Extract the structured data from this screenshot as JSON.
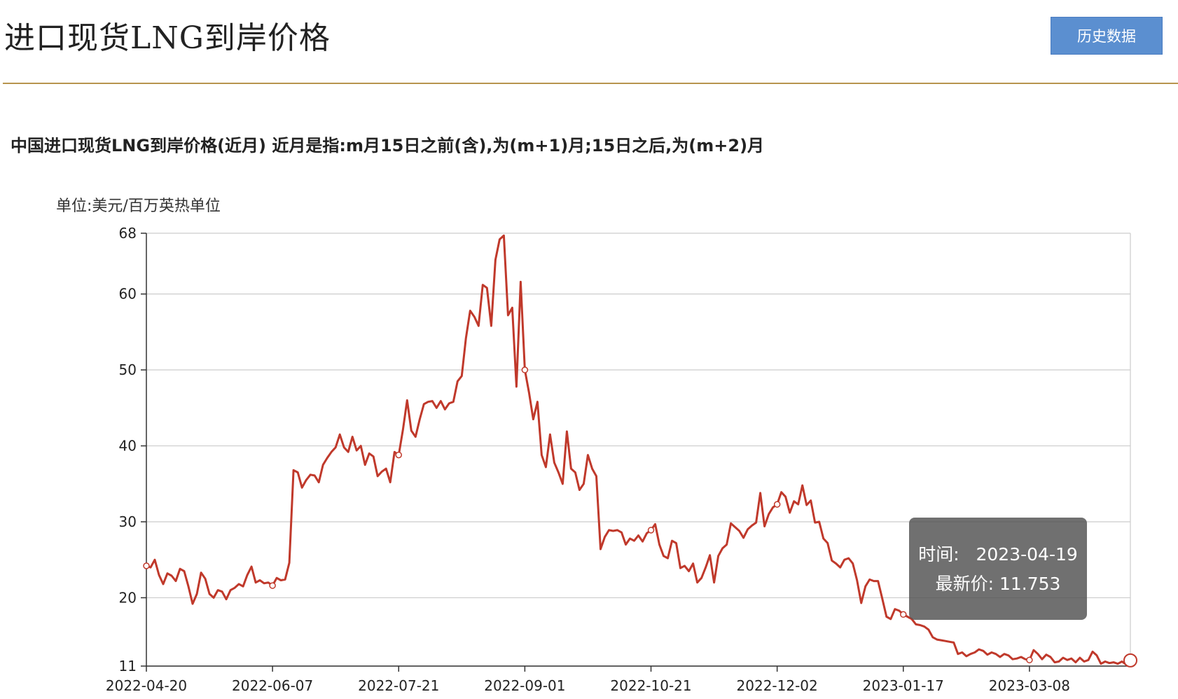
{
  "header": {
    "title": "进口现货LNG到岸价格",
    "history_button": "历史数据"
  },
  "chart_heading": "中国进口现货LNG到岸价格(近月) 近月是指:m月15日之前(含),为(m+1)月;15日之后,为(m+2)月",
  "unit_label": "单位:美元/百万英热单位",
  "tooltip": {
    "time_label": "时间:",
    "time_value": "2023-04-19",
    "price_label": "最新价:",
    "price_value": "11.753"
  },
  "colors": {
    "line": "#c0392b",
    "grid": "#cccccc",
    "axis": "#333333"
  },
  "chart_data": {
    "type": "line",
    "ylabel": "单位:美元/百万英热单位",
    "ylim": [
      11,
      68
    ],
    "yticks": [
      11,
      20,
      30,
      40,
      50,
      60,
      68
    ],
    "xticks": [
      "2022-04-20",
      "2022-06-07",
      "2022-07-21",
      "2022-09-01",
      "2022-10-21",
      "2022-12-02",
      "2023-01-17",
      "2023-03-08"
    ],
    "grid": true,
    "series": [
      {
        "values": [
          24.2,
          24.0,
          25.0,
          23.0,
          21.8,
          23.2,
          22.9,
          22.2,
          23.8,
          23.5,
          21.5,
          19.2,
          20.5,
          23.3,
          22.5,
          20.5,
          20.0,
          21.0,
          20.8,
          19.8,
          21.0,
          21.3,
          21.8,
          21.5,
          23.0,
          24.1,
          22.0,
          22.3,
          21.9,
          22.0,
          21.6,
          22.6,
          22.3,
          22.4,
          24.6,
          36.8,
          36.5,
          34.5,
          35.5,
          36.2,
          36.1,
          35.2,
          37.5,
          38.4,
          39.2,
          39.8,
          41.5,
          39.8,
          39.2,
          41.2,
          39.4,
          40.0,
          37.5,
          39.0,
          38.6,
          36.0,
          36.6,
          37.0,
          35.2,
          39.2,
          38.8,
          42.1,
          46.0,
          42.0,
          41.2,
          43.5,
          45.5,
          45.8,
          45.9,
          45.0,
          45.9,
          44.8,
          45.6,
          45.8,
          48.5,
          49.2,
          54.2,
          57.8,
          57.0,
          55.8,
          61.2,
          60.8,
          55.8,
          64.5,
          67.2,
          67.7,
          57.2,
          58.2,
          47.8,
          61.6,
          50.0,
          47.0,
          43.5,
          45.8,
          38.8,
          37.2,
          41.5,
          37.8,
          36.5,
          35.0,
          41.9,
          37.0,
          36.5,
          34.2,
          35.0,
          38.8,
          37.0,
          36.0,
          26.4,
          28.0,
          28.9,
          28.8,
          28.9,
          28.6,
          27.0,
          27.8,
          27.5,
          28.2,
          27.4,
          28.5,
          28.9,
          29.7,
          27.0,
          25.5,
          25.2,
          27.5,
          27.2,
          23.9,
          24.2,
          23.5,
          24.5,
          22.0,
          22.6,
          24.0,
          25.6,
          22.0,
          25.5,
          26.5,
          27.0,
          29.8,
          29.3,
          28.8,
          27.9,
          29.0,
          29.5,
          29.9,
          33.8,
          29.4,
          31.0,
          31.9,
          32.3,
          33.9,
          33.3,
          31.2,
          32.7,
          32.3,
          34.8,
          32.2,
          32.8,
          29.9,
          30.0,
          27.8,
          27.2,
          24.9,
          24.5,
          24.0,
          25.0,
          25.2,
          24.5,
          22.3,
          19.3,
          21.5,
          22.4,
          22.2,
          22.2,
          19.9,
          17.5,
          17.2,
          18.5,
          18.3,
          17.8,
          17.5,
          17.2,
          16.5,
          16.4,
          16.2,
          15.8,
          14.8,
          14.5,
          14.4,
          14.3,
          14.2,
          14.1,
          12.6,
          12.8,
          12.3,
          12.6,
          12.8,
          13.2,
          13.0,
          12.5,
          12.8,
          12.6,
          12.2,
          12.6,
          12.4,
          11.9,
          12.0,
          12.2,
          11.9,
          11.8,
          13.1,
          12.6,
          11.9,
          12.5,
          12.2,
          11.5,
          11.6,
          12.1,
          11.8,
          12.0,
          11.5,
          12.1,
          11.6,
          11.8,
          12.9,
          12.4,
          11.3,
          11.6,
          11.4,
          11.5,
          11.3,
          11.6,
          11.2,
          11.75
        ],
        "markers": [
          0,
          30,
          60,
          90,
          120,
          150,
          180,
          210
        ]
      }
    ]
  }
}
